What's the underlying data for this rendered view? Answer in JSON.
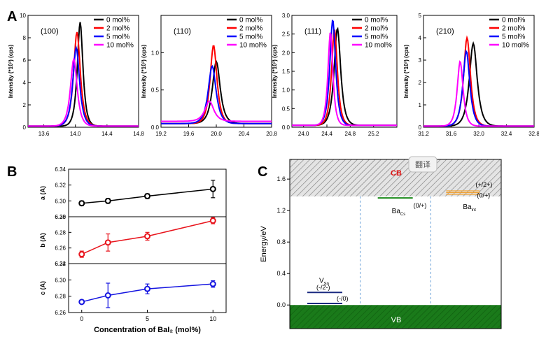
{
  "panels": {
    "A": "A",
    "B": "B",
    "C": "C"
  },
  "legend_labels": [
    "0 mol%",
    "2 mol%",
    "5 mol%",
    "10 mol%"
  ],
  "colors": {
    "s0": "#000000",
    "s1": "#ff0000",
    "s2": "#0000ff",
    "s3": "#ff00ff",
    "b_a": "#000000",
    "b_b": "#e8141c",
    "b_c": "#1414e0",
    "vb": "#1a7a1a",
    "cb_hatch": "#777777",
    "cb_label": "#e01010",
    "defect_navy": "#1a2a80",
    "defect_green": "#1a8a1a",
    "defect_orange": "#f0a030",
    "divider": "#6aa0d8"
  },
  "chart_data": [
    {
      "type": "line",
      "panel": "A",
      "peak": "(100)",
      "ylabel": "Intensity (*10³) (cps)",
      "xlim": [
        13.4,
        14.8
      ],
      "ylim": [
        0,
        10
      ],
      "xticks": [
        "13.6",
        "14.0",
        "14.4",
        "14.8"
      ],
      "yticks": [
        "0",
        "2",
        "4",
        "6",
        "8",
        "10"
      ],
      "series": [
        {
          "name": "0 mol%",
          "peak_x": 14.06,
          "peak_y": 9.4,
          "width": 0.05,
          "base": 0.1
        },
        {
          "name": "2 mol%",
          "peak_x": 14.02,
          "peak_y": 8.5,
          "width": 0.06,
          "base": 0.1
        },
        {
          "name": "5 mol%",
          "peak_x": 14.01,
          "peak_y": 7.1,
          "width": 0.06,
          "base": 0.1
        },
        {
          "name": "10 mol%",
          "peak_x": 13.98,
          "peak_y": 6.1,
          "width": 0.06,
          "base": 0.1
        }
      ]
    },
    {
      "type": "line",
      "panel": "A",
      "peak": "(110)",
      "ylabel": "Intensity (*10³) (cps)",
      "xlim": [
        19.2,
        20.8
      ],
      "ylim": [
        0,
        1.5
      ],
      "xticks": [
        "19.2",
        "19.6",
        "20.0",
        "20.4",
        "20.8"
      ],
      "yticks": [
        "0.0",
        "0.5",
        "1.0"
      ],
      "series": [
        {
          "name": "0 mol%",
          "peak_x": 20.0,
          "peak_y": 0.88,
          "width": 0.08,
          "base": 0.05
        },
        {
          "name": "2 mol%",
          "peak_x": 19.96,
          "peak_y": 1.1,
          "width": 0.07,
          "base": 0.05
        },
        {
          "name": "5 mol%",
          "peak_x": 19.94,
          "peak_y": 0.82,
          "width": 0.08,
          "base": 0.05
        },
        {
          "name": "10 mol%",
          "peak_x": 19.9,
          "peak_y": 0.35,
          "width": 0.09,
          "base": 0.08
        }
      ]
    },
    {
      "type": "line",
      "panel": "A",
      "peak": "(111)",
      "ylabel": "Intensity (*10³) (cps)",
      "xlim": [
        23.8,
        25.6
      ],
      "ylim": [
        0,
        3.0
      ],
      "xticks": [
        "24.0",
        "24.4",
        "24.8",
        "25.2"
      ],
      "yticks": [
        "0.0",
        "0.5",
        "1.0",
        "1.5",
        "2.0",
        "2.5",
        "3.0"
      ],
      "series": [
        {
          "name": "0 mol%",
          "peak_x": 24.58,
          "peak_y": 2.65,
          "width": 0.08,
          "base": 0.05
        },
        {
          "name": "2 mol%",
          "peak_x": 24.53,
          "peak_y": 2.62,
          "width": 0.07,
          "base": 0.05
        },
        {
          "name": "5 mol%",
          "peak_x": 24.5,
          "peak_y": 2.88,
          "width": 0.07,
          "base": 0.05
        },
        {
          "name": "10 mol%",
          "peak_x": 24.46,
          "peak_y": 2.55,
          "width": 0.06,
          "base": 0.05
        }
      ]
    },
    {
      "type": "line",
      "panel": "A",
      "peak": "(210)",
      "ylabel": "Intensity (*10³) (cps)",
      "xlim": [
        31.2,
        32.8
      ],
      "ylim": [
        0,
        5
      ],
      "xticks": [
        "31.2",
        "31.6",
        "32.0",
        "32.4",
        "32.8"
      ],
      "yticks": [
        "0",
        "1",
        "2",
        "3",
        "4",
        "5"
      ],
      "series": [
        {
          "name": "0 mol%",
          "peak_x": 31.92,
          "peak_y": 3.75,
          "width": 0.08,
          "base": 0.05
        },
        {
          "name": "2 mol%",
          "peak_x": 31.83,
          "peak_y": 4.0,
          "width": 0.07,
          "base": 0.05
        },
        {
          "name": "5 mol%",
          "peak_x": 31.82,
          "peak_y": 3.4,
          "width": 0.07,
          "base": 0.05
        },
        {
          "name": "10 mol%",
          "peak_x": 31.73,
          "peak_y": 2.95,
          "width": 0.06,
          "base": 0.05
        }
      ]
    },
    {
      "type": "line",
      "panel": "B",
      "ylabel": "a (A)",
      "xlim": [
        -1,
        11
      ],
      "ylim": [
        6.28,
        6.34
      ],
      "yticks": [
        "6.28",
        "6.30",
        "6.32",
        "6.34"
      ],
      "x": [
        0,
        2,
        5,
        10
      ],
      "y": [
        6.297,
        6.3,
        6.306,
        6.315
      ],
      "err": [
        0.003,
        0.003,
        0.003,
        0.011
      ]
    },
    {
      "type": "line",
      "panel": "B",
      "ylabel": "b (A)",
      "xlim": [
        -1,
        11
      ],
      "ylim": [
        6.24,
        6.3
      ],
      "yticks": [
        "6.24",
        "6.26",
        "6.28",
        "6.30"
      ],
      "x": [
        0,
        2,
        5,
        10
      ],
      "y": [
        6.252,
        6.267,
        6.275,
        6.295
      ],
      "err": [
        0.004,
        0.011,
        0.005,
        0.004
      ]
    },
    {
      "type": "line",
      "panel": "B",
      "ylabel": "c (A)",
      "xlim": [
        -1,
        11
      ],
      "ylim": [
        6.26,
        6.32
      ],
      "yticks": [
        "6.26",
        "6.28",
        "6.30",
        "6.32"
      ],
      "x": [
        0,
        2,
        5,
        10
      ],
      "y": [
        6.273,
        6.281,
        6.289,
        6.295
      ],
      "err": [
        0.002,
        0.015,
        0.006,
        0.004
      ],
      "xticks": [
        "0",
        "5",
        "10"
      ],
      "xlabel": "Concentration of BaI₂ (mol%)"
    },
    {
      "type": "diagram",
      "panel": "C",
      "ylabel": "Energy/eV",
      "ylim": [
        -0.3,
        1.85
      ],
      "yticks": [
        "0.0",
        "0.4",
        "0.8",
        "1.2",
        "1.6"
      ],
      "cbm": 1.38,
      "vbm": 0.0,
      "band_labels": {
        "cb": "CB",
        "vb": "VB"
      },
      "watermark": "翻译",
      "defects": [
        {
          "name": "VSn",
          "main": "V",
          "sub": "Sn",
          "levels": [
            {
              "energy": 0.16,
              "label": "(-/2-)"
            },
            {
              "energy": 0.02,
              "label": "(-/0)"
            }
          ]
        },
        {
          "name": "BaCs",
          "main": "Ba",
          "sub": "Cs",
          "levels": [
            {
              "energy": 1.36,
              "label": "(0/+)"
            }
          ]
        },
        {
          "name": "Baint",
          "main": "Ba",
          "sub": "int",
          "levels": [
            {
              "energy": 1.45,
              "label": "(+/2+)"
            },
            {
              "energy": 1.4,
              "label": "(0/+)"
            }
          ]
        }
      ]
    }
  ]
}
